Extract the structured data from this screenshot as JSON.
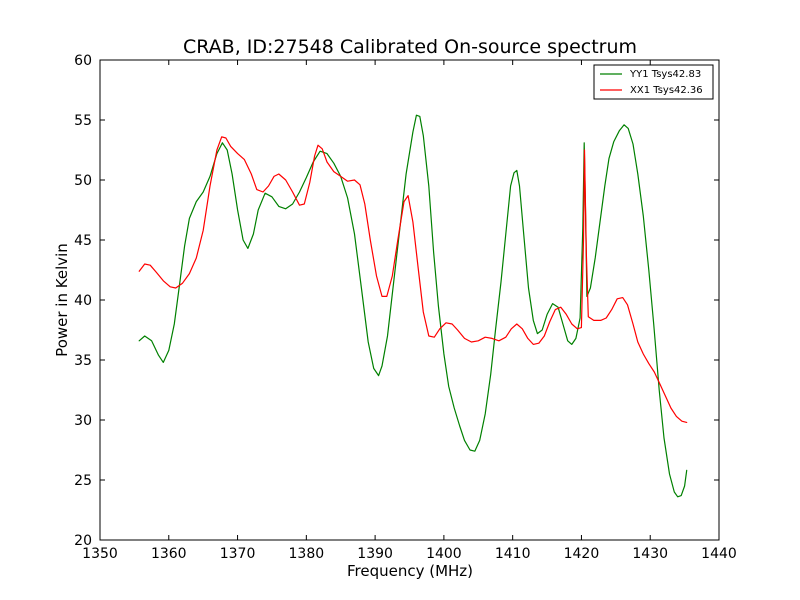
{
  "chart_data": {
    "type": "line",
    "title": "CRAB, ID:27548 Calibrated On-source spectrum",
    "xlabel": "Frequency (MHz)",
    "ylabel": "Power in Kelvin",
    "xlim": [
      1350,
      1440
    ],
    "ylim": [
      20,
      60
    ],
    "xticks": [
      1350,
      1360,
      1370,
      1380,
      1390,
      1400,
      1410,
      1420,
      1430,
      1440
    ],
    "yticks": [
      20,
      25,
      30,
      35,
      40,
      45,
      50,
      55,
      60
    ],
    "grid": false,
    "legend_position": "top-right",
    "series": [
      {
        "name": "YY1 Tsys42.83",
        "color": "#008000",
        "points": [
          [
            1355.7,
            36.6
          ],
          [
            1356.5,
            37.0
          ],
          [
            1357.5,
            36.6
          ],
          [
            1358.5,
            35.4
          ],
          [
            1359.2,
            34.8
          ],
          [
            1360.0,
            35.8
          ],
          [
            1360.8,
            38.0
          ],
          [
            1361.5,
            41.0
          ],
          [
            1362.3,
            44.5
          ],
          [
            1363.0,
            46.8
          ],
          [
            1364.0,
            48.2
          ],
          [
            1365.0,
            49.0
          ],
          [
            1366.0,
            50.3
          ],
          [
            1367.0,
            52.2
          ],
          [
            1367.8,
            53.1
          ],
          [
            1368.5,
            52.5
          ],
          [
            1369.2,
            50.5
          ],
          [
            1370.0,
            47.5
          ],
          [
            1370.8,
            45.0
          ],
          [
            1371.5,
            44.3
          ],
          [
            1372.3,
            45.5
          ],
          [
            1373.0,
            47.5
          ],
          [
            1374.0,
            48.9
          ],
          [
            1375.0,
            48.6
          ],
          [
            1376.0,
            47.8
          ],
          [
            1377.0,
            47.6
          ],
          [
            1378.0,
            48.0
          ],
          [
            1379.0,
            49.0
          ],
          [
            1380.0,
            50.2
          ],
          [
            1381.0,
            51.5
          ],
          [
            1382.0,
            52.4
          ],
          [
            1383.0,
            52.2
          ],
          [
            1384.0,
            51.4
          ],
          [
            1385.0,
            50.3
          ],
          [
            1386.0,
            48.5
          ],
          [
            1387.0,
            45.5
          ],
          [
            1388.0,
            41.0
          ],
          [
            1389.0,
            36.5
          ],
          [
            1389.8,
            34.3
          ],
          [
            1390.5,
            33.7
          ],
          [
            1391.0,
            34.5
          ],
          [
            1391.8,
            37.0
          ],
          [
            1392.5,
            40.5
          ],
          [
            1393.5,
            45.5
          ],
          [
            1394.5,
            50.5
          ],
          [
            1395.5,
            54.0
          ],
          [
            1396.0,
            55.4
          ],
          [
            1396.5,
            55.3
          ],
          [
            1397.0,
            53.7
          ],
          [
            1397.8,
            49.5
          ],
          [
            1398.5,
            44.0
          ],
          [
            1399.2,
            39.5
          ],
          [
            1400.0,
            35.5
          ],
          [
            1400.7,
            32.8
          ],
          [
            1401.5,
            31.0
          ],
          [
            1402.3,
            29.5
          ],
          [
            1403.0,
            28.3
          ],
          [
            1403.8,
            27.5
          ],
          [
            1404.5,
            27.4
          ],
          [
            1405.2,
            28.3
          ],
          [
            1406.0,
            30.5
          ],
          [
            1406.8,
            33.8
          ],
          [
            1407.5,
            37.5
          ],
          [
            1408.3,
            41.5
          ],
          [
            1409.0,
            45.5
          ],
          [
            1409.7,
            49.5
          ],
          [
            1410.2,
            50.6
          ],
          [
            1410.6,
            50.8
          ],
          [
            1411.0,
            49.5
          ],
          [
            1411.6,
            45.5
          ],
          [
            1412.3,
            41.0
          ],
          [
            1413.0,
            38.3
          ],
          [
            1413.6,
            37.2
          ],
          [
            1414.3,
            37.5
          ],
          [
            1415.0,
            38.8
          ],
          [
            1415.8,
            39.7
          ],
          [
            1416.6,
            39.4
          ],
          [
            1417.3,
            38.0
          ],
          [
            1418.0,
            36.6
          ],
          [
            1418.6,
            36.3
          ],
          [
            1419.2,
            36.8
          ],
          [
            1419.8,
            38.5
          ],
          [
            1420.2,
            46.0
          ],
          [
            1420.4,
            53.1
          ],
          [
            1420.6,
            47.0
          ],
          [
            1420.8,
            40.3
          ],
          [
            1421.3,
            41.0
          ],
          [
            1422.0,
            43.5
          ],
          [
            1422.7,
            46.5
          ],
          [
            1423.4,
            49.5
          ],
          [
            1424.0,
            51.8
          ],
          [
            1424.7,
            53.2
          ],
          [
            1425.5,
            54.1
          ],
          [
            1426.2,
            54.6
          ],
          [
            1426.8,
            54.3
          ],
          [
            1427.5,
            53.0
          ],
          [
            1428.2,
            50.5
          ],
          [
            1429.0,
            47.0
          ],
          [
            1429.8,
            42.5
          ],
          [
            1430.5,
            38.0
          ],
          [
            1431.3,
            32.5
          ],
          [
            1432.0,
            28.5
          ],
          [
            1432.8,
            25.5
          ],
          [
            1433.5,
            24.0
          ],
          [
            1434.0,
            23.6
          ],
          [
            1434.5,
            23.7
          ],
          [
            1435.0,
            24.5
          ],
          [
            1435.3,
            25.8
          ]
        ]
      },
      {
        "name": "XX1 Tsys42.36",
        "color": "#ff0000",
        "points": [
          [
            1355.7,
            42.4
          ],
          [
            1356.5,
            43.0
          ],
          [
            1357.3,
            42.9
          ],
          [
            1358.2,
            42.3
          ],
          [
            1359.2,
            41.6
          ],
          [
            1360.2,
            41.1
          ],
          [
            1361.0,
            41.0
          ],
          [
            1362.0,
            41.4
          ],
          [
            1363.0,
            42.2
          ],
          [
            1364.0,
            43.5
          ],
          [
            1365.0,
            45.8
          ],
          [
            1366.0,
            49.5
          ],
          [
            1367.0,
            52.5
          ],
          [
            1367.7,
            53.6
          ],
          [
            1368.3,
            53.5
          ],
          [
            1369.0,
            52.8
          ],
          [
            1370.0,
            52.2
          ],
          [
            1371.0,
            51.7
          ],
          [
            1372.0,
            50.5
          ],
          [
            1372.8,
            49.2
          ],
          [
            1373.7,
            49.0
          ],
          [
            1374.5,
            49.5
          ],
          [
            1375.3,
            50.3
          ],
          [
            1376.0,
            50.5
          ],
          [
            1377.0,
            50.0
          ],
          [
            1378.0,
            49.0
          ],
          [
            1379.0,
            47.9
          ],
          [
            1379.7,
            48.0
          ],
          [
            1380.5,
            49.8
          ],
          [
            1381.2,
            52.0
          ],
          [
            1381.7,
            52.9
          ],
          [
            1382.3,
            52.6
          ],
          [
            1383.0,
            51.5
          ],
          [
            1384.0,
            50.7
          ],
          [
            1385.0,
            50.3
          ],
          [
            1386.0,
            49.9
          ],
          [
            1387.0,
            50.0
          ],
          [
            1387.8,
            49.6
          ],
          [
            1388.5,
            48.0
          ],
          [
            1389.3,
            45.0
          ],
          [
            1390.2,
            42.0
          ],
          [
            1391.0,
            40.3
          ],
          [
            1391.7,
            40.3
          ],
          [
            1392.5,
            42.0
          ],
          [
            1393.3,
            45.0
          ],
          [
            1394.2,
            48.2
          ],
          [
            1394.8,
            48.7
          ],
          [
            1395.5,
            46.5
          ],
          [
            1396.3,
            42.5
          ],
          [
            1397.0,
            39.0
          ],
          [
            1397.8,
            37.0
          ],
          [
            1398.6,
            36.9
          ],
          [
            1399.4,
            37.6
          ],
          [
            1400.3,
            38.1
          ],
          [
            1401.2,
            38.0
          ],
          [
            1402.0,
            37.5
          ],
          [
            1403.0,
            36.8
          ],
          [
            1404.0,
            36.5
          ],
          [
            1405.0,
            36.6
          ],
          [
            1406.0,
            36.9
          ],
          [
            1407.0,
            36.8
          ],
          [
            1408.0,
            36.6
          ],
          [
            1409.0,
            36.9
          ],
          [
            1409.8,
            37.6
          ],
          [
            1410.6,
            38.0
          ],
          [
            1411.4,
            37.6
          ],
          [
            1412.2,
            36.8
          ],
          [
            1413.0,
            36.3
          ],
          [
            1413.8,
            36.4
          ],
          [
            1414.6,
            37.0
          ],
          [
            1415.4,
            38.2
          ],
          [
            1416.2,
            39.2
          ],
          [
            1417.0,
            39.4
          ],
          [
            1417.8,
            38.8
          ],
          [
            1418.6,
            38.0
          ],
          [
            1419.4,
            37.6
          ],
          [
            1420.0,
            37.7
          ],
          [
            1420.3,
            45.0
          ],
          [
            1420.45,
            52.5
          ],
          [
            1420.7,
            44.0
          ],
          [
            1421.0,
            38.6
          ],
          [
            1421.8,
            38.3
          ],
          [
            1422.8,
            38.3
          ],
          [
            1423.6,
            38.5
          ],
          [
            1424.4,
            39.2
          ],
          [
            1425.2,
            40.1
          ],
          [
            1426.0,
            40.2
          ],
          [
            1426.7,
            39.6
          ],
          [
            1427.5,
            38.0
          ],
          [
            1428.2,
            36.5
          ],
          [
            1429.0,
            35.5
          ],
          [
            1429.8,
            34.7
          ],
          [
            1430.6,
            34.0
          ],
          [
            1431.4,
            33.0
          ],
          [
            1432.2,
            32.0
          ],
          [
            1433.0,
            31.0
          ],
          [
            1433.8,
            30.3
          ],
          [
            1434.6,
            29.9
          ],
          [
            1435.3,
            29.8
          ]
        ]
      }
    ]
  }
}
